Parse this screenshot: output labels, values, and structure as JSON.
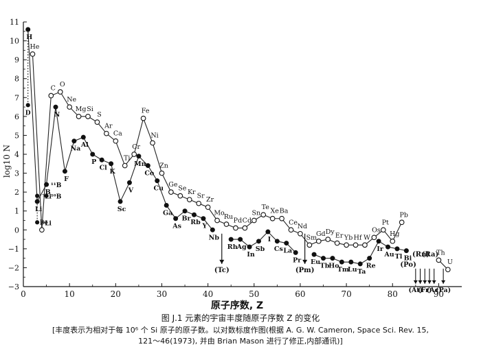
{
  "chart_data": {
    "type": "line",
    "ylabel": "log10 N",
    "xlabel": "原子序数, Z",
    "xlim": [
      0,
      95
    ],
    "ylim": [
      -3,
      11
    ],
    "xticks": [
      0,
      10,
      20,
      30,
      40,
      50,
      60,
      70,
      80,
      90
    ],
    "yticks": [
      -3,
      -2,
      -1,
      0,
      1,
      2,
      3,
      4,
      5,
      6,
      7,
      8,
      9,
      10,
      11
    ],
    "caption": "图 J.1  元素的宇宙丰度随原子序数 Z 的变化",
    "caption_note_lines": [
      "[丰度表示为相对于每 10⁶ 个 Si 原子的原子数。以对数标度作图(根据 A. G. W. Cameron, Space Sci. Rev. 15,",
      "121～46(1973), 并由 Brian Mason 进行了修正,内部通讯)]"
    ],
    "even_z": [
      {
        "z": 2,
        "y": 9.3,
        "label": "He"
      },
      {
        "z": 4,
        "y": 0.0,
        "label": "Be"
      },
      {
        "z": 6,
        "y": 7.1,
        "label": "C"
      },
      {
        "z": 8,
        "y": 7.3,
        "label": "O"
      },
      {
        "z": 10,
        "y": 6.5,
        "label": "Ne"
      },
      {
        "z": 12,
        "y": 6.0,
        "label": "Mg"
      },
      {
        "z": 14,
        "y": 6.0,
        "label": "Si"
      },
      {
        "z": 16,
        "y": 5.7,
        "label": "S"
      },
      {
        "z": 18,
        "y": 5.1,
        "label": "Ar"
      },
      {
        "z": 20,
        "y": 4.7,
        "label": "Ca"
      },
      {
        "z": 22,
        "y": 3.4,
        "label": "Ti"
      },
      {
        "z": 24,
        "y": 4.0,
        "label": "Cr"
      },
      {
        "z": 26,
        "y": 5.9,
        "label": "Fe"
      },
      {
        "z": 28,
        "y": 4.6,
        "label": "Ni"
      },
      {
        "z": 30,
        "y": 3.0,
        "label": "Zn"
      },
      {
        "z": 32,
        "y": 2.0,
        "label": "Ge"
      },
      {
        "z": 34,
        "y": 1.8,
        "label": "Se"
      },
      {
        "z": 36,
        "y": 1.6,
        "label": "Kr"
      },
      {
        "z": 38,
        "y": 1.4,
        "label": "Sr"
      },
      {
        "z": 40,
        "y": 1.2,
        "label": "Zr"
      },
      {
        "z": 42,
        "y": 0.5,
        "label": "Mo"
      },
      {
        "z": 44,
        "y": 0.3,
        "label": "Ru"
      },
      {
        "z": 46,
        "y": 0.1,
        "label": "Pd"
      },
      {
        "z": 48,
        "y": 0.1,
        "label": "Cd"
      },
      {
        "z": 50,
        "y": 0.5,
        "label": "Sn"
      },
      {
        "z": 52,
        "y": 0.8,
        "label": "Te"
      },
      {
        "z": 54,
        "y": 0.6,
        "label": "Xe"
      },
      {
        "z": 56,
        "y": 0.6,
        "label": "Ba"
      },
      {
        "z": 58,
        "y": 0.0,
        "label": "Ce"
      },
      {
        "z": 60,
        "y": -0.2,
        "label": "Nd"
      },
      {
        "z": 62,
        "y": -0.8,
        "label": "Sm"
      },
      {
        "z": 64,
        "y": -0.6,
        "label": "Gd"
      },
      {
        "z": 66,
        "y": -0.5,
        "label": "Dy"
      },
      {
        "z": 68,
        "y": -0.7,
        "label": "Er"
      },
      {
        "z": 70,
        "y": -0.8,
        "label": "Yb"
      },
      {
        "z": 72,
        "y": -0.8,
        "label": "Hf"
      },
      {
        "z": 74,
        "y": -0.8,
        "label": "W"
      },
      {
        "z": 76,
        "y": -0.4,
        "label": "Os"
      },
      {
        "z": 78,
        "y": 0.0,
        "label": "Pt"
      },
      {
        "z": 80,
        "y": -0.6,
        "label": "Hg"
      },
      {
        "z": 82,
        "y": 0.4,
        "label": "Pb"
      },
      {
        "z": 90,
        "y": -1.6,
        "label": "Th"
      },
      {
        "z": 92,
        "y": -2.1,
        "label": "U"
      }
    ],
    "odd_z": [
      {
        "z": 1,
        "y": 10.6,
        "label": "H"
      },
      {
        "z": 3,
        "y": 1.5,
        "label": "Li"
      },
      {
        "z": 5,
        "y": 2.4,
        "label": "B"
      },
      {
        "z": 7,
        "y": 6.5,
        "label": "N"
      },
      {
        "z": 9,
        "y": 3.1,
        "label": "F"
      },
      {
        "z": 11,
        "y": 4.7,
        "label": "Na"
      },
      {
        "z": 13,
        "y": 4.9,
        "label": "Al"
      },
      {
        "z": 15,
        "y": 4.0,
        "label": "P"
      },
      {
        "z": 17,
        "y": 3.7,
        "label": "Cl"
      },
      {
        "z": 19,
        "y": 3.5,
        "label": "K"
      },
      {
        "z": 21,
        "y": 1.5,
        "label": "Sc"
      },
      {
        "z": 23,
        "y": 2.5,
        "label": "V"
      },
      {
        "z": 25,
        "y": 3.9,
        "label": "Mn"
      },
      {
        "z": 27,
        "y": 3.4,
        "label": "Co"
      },
      {
        "z": 29,
        "y": 2.6,
        "label": "Cu"
      },
      {
        "z": 31,
        "y": 1.3,
        "label": "Ga"
      },
      {
        "z": 33,
        "y": 0.6,
        "label": "As"
      },
      {
        "z": 35,
        "y": 1.0,
        "label": "Br"
      },
      {
        "z": 37,
        "y": 0.8,
        "label": "Rb"
      },
      {
        "z": 39,
        "y": 0.6,
        "label": "Y"
      },
      {
        "z": 41,
        "y": 0.0,
        "label": "Nb"
      },
      {
        "z": 45,
        "y": -0.5,
        "label": "Rh"
      },
      {
        "z": 47,
        "y": -0.5,
        "label": "Ag"
      },
      {
        "z": 49,
        "y": -0.9,
        "label": "In"
      },
      {
        "z": 51,
        "y": -0.6,
        "label": "Sb"
      },
      {
        "z": 53,
        "y": -0.1,
        "label": "I"
      },
      {
        "z": 55,
        "y": -0.6,
        "label": "Cs"
      },
      {
        "z": 57,
        "y": -0.7,
        "label": "La"
      },
      {
        "z": 59,
        "y": -1.2,
        "label": "Pr"
      },
      {
        "z": 63,
        "y": -1.3,
        "label": "Eu"
      },
      {
        "z": 65,
        "y": -1.5,
        "label": "Tb"
      },
      {
        "z": 67,
        "y": -1.5,
        "label": "Ho"
      },
      {
        "z": 69,
        "y": -1.7,
        "label": "Tm"
      },
      {
        "z": 71,
        "y": -1.7,
        "label": "Lu"
      },
      {
        "z": 73,
        "y": -1.8,
        "label": "Ta"
      },
      {
        "z": 75,
        "y": -1.5,
        "label": "Re"
      },
      {
        "z": 77,
        "y": -0.6,
        "label": "Ir"
      },
      {
        "z": 79,
        "y": -0.9,
        "label": "Au"
      },
      {
        "z": 81,
        "y": -1.0,
        "label": "Tl"
      },
      {
        "z": 83,
        "y": -1.1,
        "label": "Bi"
      }
    ],
    "isotope_points": [
      {
        "z": 1,
        "y": 6.6,
        "label": "D"
      },
      {
        "z": 3,
        "y": 1.8,
        "label": "⁷Li"
      },
      {
        "z": 3,
        "y": 0.4,
        "label": "⁶Li"
      },
      {
        "z": 5,
        "y": 2.4,
        "label": "¹¹B"
      },
      {
        "z": 5,
        "y": 1.8,
        "label": "¹⁰B"
      }
    ],
    "missing_elements": [
      {
        "z": 43,
        "label": "(Tc)"
      },
      {
        "z": 61,
        "label": "(Pm)"
      }
    ],
    "heavy_markers": [
      {
        "z": 84,
        "label": "(Po)"
      },
      {
        "z": 85,
        "label": "(At)"
      },
      {
        "z": 86,
        "label": "(Rn)"
      },
      {
        "z": 87,
        "label": "(Fr)"
      },
      {
        "z": 88,
        "label": "(Ra)"
      },
      {
        "z": 89,
        "label": "(Ac)"
      },
      {
        "z": 91,
        "label": "(Pa)"
      }
    ]
  }
}
